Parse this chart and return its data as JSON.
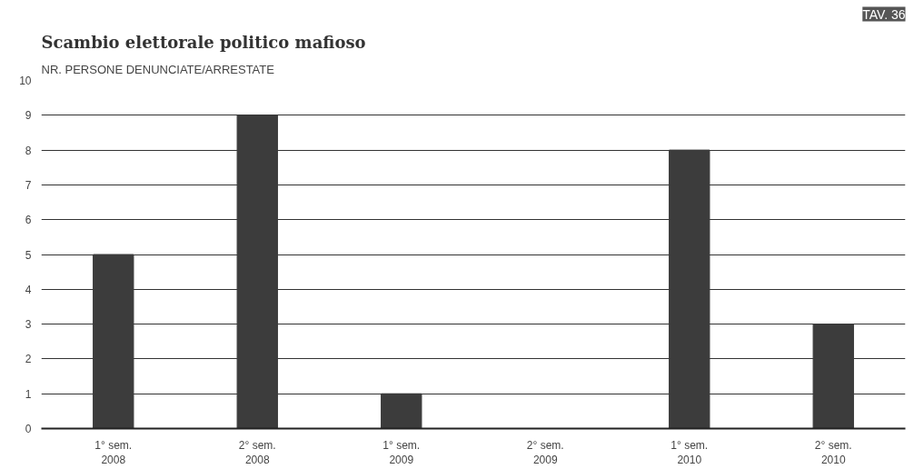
{
  "chart_data": {
    "type": "bar",
    "title": "Scambio elettorale politico mafioso",
    "subtitle": "NR. PERSONE DENUNCIATE/ARRESTATE",
    "categories": [
      "1° sem.\n2008",
      "2° sem.\n2008",
      "1° sem.\n2009",
      "2° sem.\n2009",
      "1° sem.\n2010",
      "2° sem.\n2010"
    ],
    "values": [
      5,
      9,
      1,
      0,
      8,
      3
    ],
    "color": "#3c3c3c",
    "ylim": [
      0,
      10
    ],
    "yticks": [
      0,
      1,
      2,
      3,
      4,
      5,
      6,
      7,
      8,
      9,
      10
    ],
    "grid": "y",
    "annotations": [
      "TAV. 36"
    ]
  }
}
